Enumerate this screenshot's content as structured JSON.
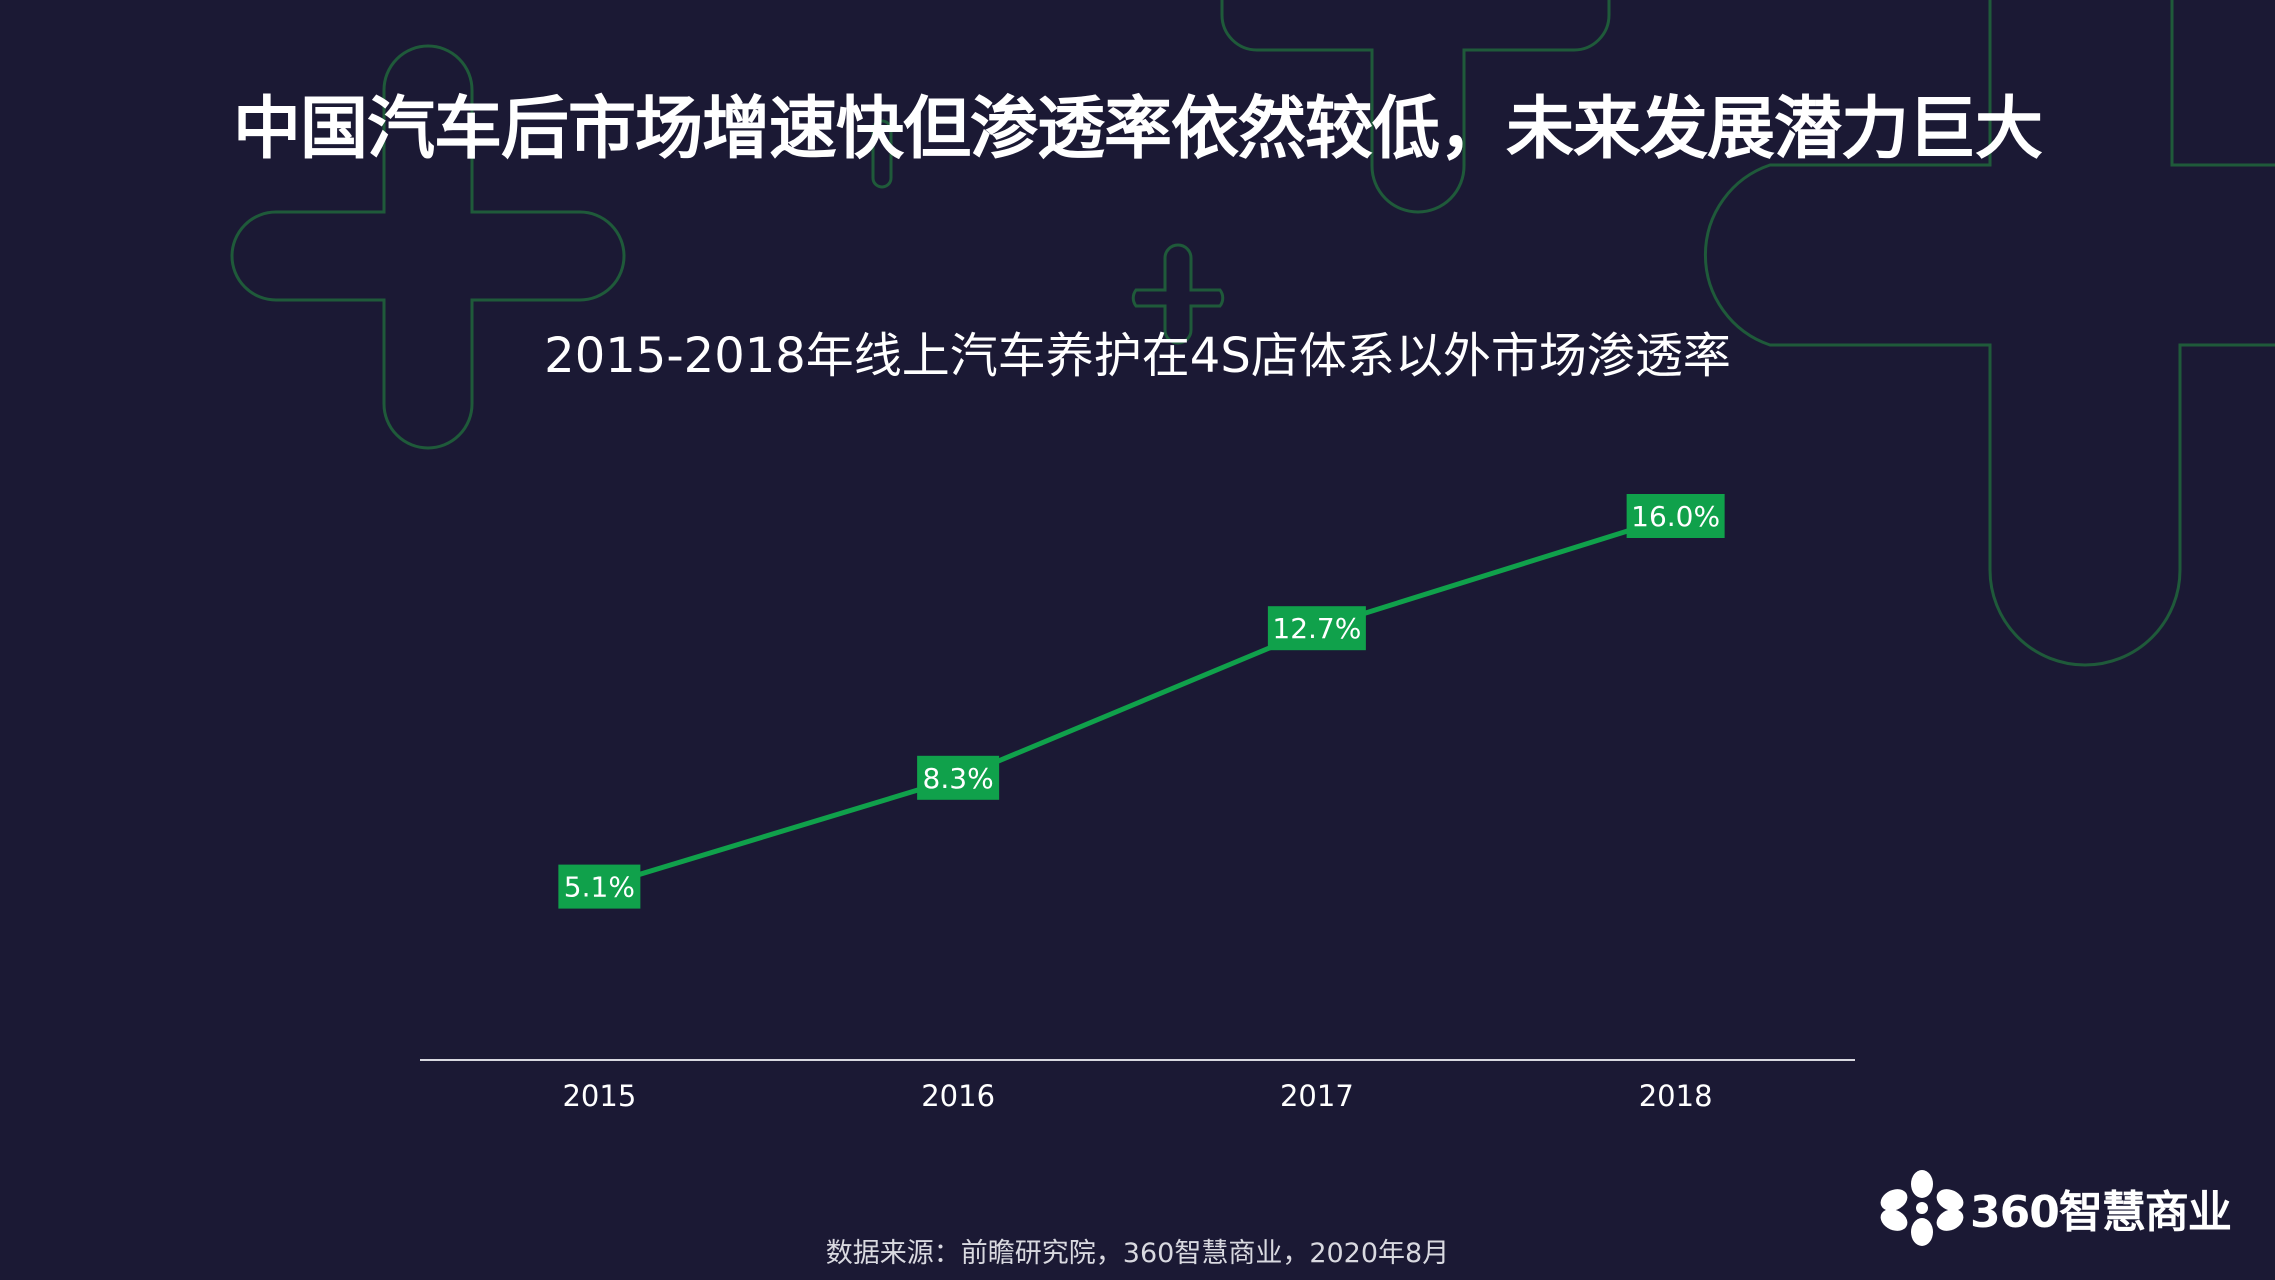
{
  "slide": {
    "title": "中国汽车后市场增速快但渗透率依然较低，未来发展潜力巨大",
    "source": "数据来源：前瞻研究院，360智慧商业，2020年8月",
    "logo_text": "360智慧商业"
  },
  "colors": {
    "background": "#1b1934",
    "accent": "#10a14b",
    "decor_line": "#1f5a3a",
    "text": "#ffffff"
  },
  "chart_data": {
    "type": "line",
    "title": "2015-2018年线上汽车养护在4S店体系以外市场渗透率",
    "categories": [
      "2015",
      "2016",
      "2017",
      "2018"
    ],
    "values": [
      5.1,
      8.3,
      12.7,
      16.0
    ],
    "data_labels": [
      "5.1%",
      "8.3%",
      "12.7%",
      "16.0%"
    ],
    "unit": "%",
    "ylim": [
      0,
      20
    ],
    "grid": false,
    "legend": "none"
  }
}
